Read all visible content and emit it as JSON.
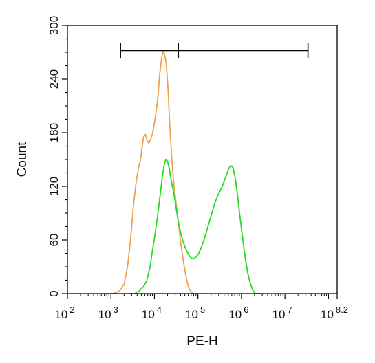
{
  "chart_data": {
    "type": "line",
    "xlabel": "PE-H",
    "ylabel": "Count",
    "x_scale": "log10",
    "xlim": [
      2,
      8.2
    ],
    "ylim": [
      0,
      300
    ],
    "y_ticks": [
      0,
      60,
      120,
      180,
      240,
      300
    ],
    "x_ticks": [
      {
        "value": 2,
        "base": "10",
        "exp": "2"
      },
      {
        "value": 3,
        "base": "10",
        "exp": "3"
      },
      {
        "value": 4,
        "base": "10",
        "exp": "4"
      },
      {
        "value": 5,
        "base": "10",
        "exp": "5"
      },
      {
        "value": 6,
        "base": "10",
        "exp": "6"
      },
      {
        "value": 7,
        "base": "10",
        "exp": "7"
      },
      {
        "value": 8.2,
        "base": "10",
        "exp": "8.2"
      }
    ],
    "gate": {
      "x_start": 3.22,
      "x_mid": 4.55,
      "x_end": 7.53,
      "y": 272
    },
    "series": [
      {
        "color": "#f0a050",
        "points": [
          [
            2.85,
            0
          ],
          [
            3.05,
            0
          ],
          [
            3.2,
            3
          ],
          [
            3.3,
            10
          ],
          [
            3.38,
            30
          ],
          [
            3.45,
            60
          ],
          [
            3.52,
            100
          ],
          [
            3.58,
            125
          ],
          [
            3.63,
            140
          ],
          [
            3.68,
            150
          ],
          [
            3.72,
            165
          ],
          [
            3.75,
            175
          ],
          [
            3.79,
            178
          ],
          [
            3.83,
            172
          ],
          [
            3.87,
            168
          ],
          [
            3.91,
            172
          ],
          [
            3.95,
            178
          ],
          [
            3.99,
            188
          ],
          [
            4.03,
            200
          ],
          [
            4.08,
            220
          ],
          [
            4.12,
            245
          ],
          [
            4.16,
            262
          ],
          [
            4.2,
            272
          ],
          [
            4.23,
            268
          ],
          [
            4.27,
            258
          ],
          [
            4.31,
            230
          ],
          [
            4.35,
            190
          ],
          [
            4.4,
            150
          ],
          [
            4.45,
            120
          ],
          [
            4.5,
            100
          ],
          [
            4.55,
            80
          ],
          [
            4.6,
            58
          ],
          [
            4.67,
            35
          ],
          [
            4.74,
            15
          ],
          [
            4.8,
            5
          ],
          [
            4.88,
            0
          ],
          [
            5.0,
            0
          ]
        ]
      },
      {
        "color": "#22dd22",
        "points": [
          [
            3.4,
            0
          ],
          [
            3.55,
            0
          ],
          [
            3.65,
            3
          ],
          [
            3.75,
            8
          ],
          [
            3.82,
            14
          ],
          [
            3.9,
            30
          ],
          [
            3.96,
            50
          ],
          [
            4.02,
            68
          ],
          [
            4.08,
            90
          ],
          [
            4.13,
            110
          ],
          [
            4.18,
            130
          ],
          [
            4.22,
            143
          ],
          [
            4.26,
            150
          ],
          [
            4.3,
            148
          ],
          [
            4.34,
            140
          ],
          [
            4.38,
            128
          ],
          [
            4.42,
            118
          ],
          [
            4.46,
            108
          ],
          [
            4.5,
            95
          ],
          [
            4.55,
            80
          ],
          [
            4.6,
            68
          ],
          [
            4.66,
            58
          ],
          [
            4.72,
            50
          ],
          [
            4.78,
            44
          ],
          [
            4.84,
            40
          ],
          [
            4.9,
            39
          ],
          [
            4.96,
            41
          ],
          [
            5.02,
            45
          ],
          [
            5.08,
            52
          ],
          [
            5.14,
            60
          ],
          [
            5.2,
            70
          ],
          [
            5.26,
            80
          ],
          [
            5.32,
            90
          ],
          [
            5.38,
            100
          ],
          [
            5.44,
            108
          ],
          [
            5.5,
            114
          ],
          [
            5.56,
            120
          ],
          [
            5.62,
            128
          ],
          [
            5.68,
            136
          ],
          [
            5.73,
            142
          ],
          [
            5.77,
            143
          ],
          [
            5.81,
            140
          ],
          [
            5.86,
            128
          ],
          [
            5.91,
            110
          ],
          [
            5.96,
            88
          ],
          [
            6.02,
            65
          ],
          [
            6.08,
            42
          ],
          [
            6.14,
            24
          ],
          [
            6.2,
            12
          ],
          [
            6.26,
            4
          ],
          [
            6.32,
            0
          ],
          [
            6.45,
            0
          ]
        ]
      }
    ]
  }
}
